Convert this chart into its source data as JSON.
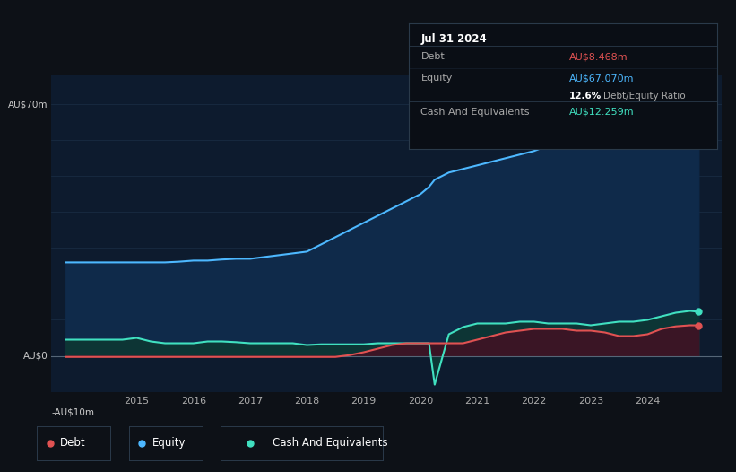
{
  "bg_color": "#0d1117",
  "plot_bg_color": "#0d1b2e",
  "grid_color": "#1a2e45",
  "debt_color": "#e05252",
  "equity_color": "#4db8ff",
  "cash_color": "#40e0c0",
  "equity_fill_color": "#0f2a4a",
  "cash_fill_color": "#0d3535",
  "debt_fill_color": "#3a1525",
  "tooltip_title": "Jul 31 2024",
  "tooltip_debt_value": "AU$8.468m",
  "tooltip_equity_value": "AU$67.070m",
  "tooltip_cash_value": "AU$12.259m",
  "ylabel_top": "AU$70m",
  "ylabel_zero": "AU$0",
  "ylabel_bottom": "-AU$10m",
  "x_min": 2013.5,
  "x_max": 2025.3,
  "y_min": -10,
  "y_max": 78,
  "years": [
    2013.75,
    2014.0,
    2014.25,
    2014.5,
    2014.75,
    2015.0,
    2015.25,
    2015.5,
    2015.75,
    2016.0,
    2016.25,
    2016.5,
    2016.75,
    2017.0,
    2017.25,
    2017.5,
    2017.75,
    2018.0,
    2018.25,
    2018.5,
    2018.75,
    2019.0,
    2019.25,
    2019.5,
    2019.75,
    2020.0,
    2020.15,
    2020.25,
    2020.5,
    2020.75,
    2021.0,
    2021.25,
    2021.5,
    2021.75,
    2022.0,
    2022.25,
    2022.5,
    2022.75,
    2023.0,
    2023.25,
    2023.5,
    2023.75,
    2024.0,
    2024.25,
    2024.5,
    2024.75,
    2024.9
  ],
  "equity": [
    26,
    26,
    26,
    26,
    26,
    26,
    26,
    26,
    26.2,
    26.5,
    26.5,
    26.8,
    27,
    27,
    27.5,
    28,
    28.5,
    29,
    31,
    33,
    35,
    37,
    39,
    41,
    43,
    45,
    47,
    49,
    51,
    52,
    53,
    54,
    55,
    56,
    57,
    58.5,
    59,
    59.5,
    61,
    62,
    62.5,
    63,
    64,
    65,
    66,
    67,
    67.07
  ],
  "debt": [
    -0.3,
    -0.3,
    -0.3,
    -0.3,
    -0.3,
    -0.3,
    -0.3,
    -0.3,
    -0.3,
    -0.3,
    -0.3,
    -0.3,
    -0.3,
    -0.3,
    -0.3,
    -0.3,
    -0.3,
    -0.3,
    -0.3,
    -0.3,
    0.2,
    1.0,
    2.0,
    3.0,
    3.5,
    3.5,
    3.5,
    3.5,
    3.5,
    3.5,
    4.5,
    5.5,
    6.5,
    7.0,
    7.5,
    7.5,
    7.5,
    7.0,
    7.0,
    6.5,
    5.5,
    5.5,
    6.0,
    7.5,
    8.2,
    8.5,
    8.468
  ],
  "cash": [
    4.5,
    4.5,
    4.5,
    4.5,
    4.5,
    5.0,
    4.0,
    3.5,
    3.5,
    3.5,
    4.0,
    4.0,
    3.8,
    3.5,
    3.5,
    3.5,
    3.5,
    3.0,
    3.2,
    3.2,
    3.2,
    3.2,
    3.5,
    3.5,
    3.5,
    3.5,
    3.5,
    -8.0,
    6.0,
    8.0,
    9.0,
    9.0,
    9.0,
    9.5,
    9.5,
    9.0,
    9.0,
    9.0,
    8.5,
    9.0,
    9.5,
    9.5,
    10.0,
    11.0,
    12.0,
    12.5,
    12.259
  ],
  "legend_items": [
    {
      "label": "Debt",
      "color": "#e05252"
    },
    {
      "label": "Equity",
      "color": "#4db8ff"
    },
    {
      "label": "Cash And Equivalents",
      "color": "#40e0c0"
    }
  ]
}
